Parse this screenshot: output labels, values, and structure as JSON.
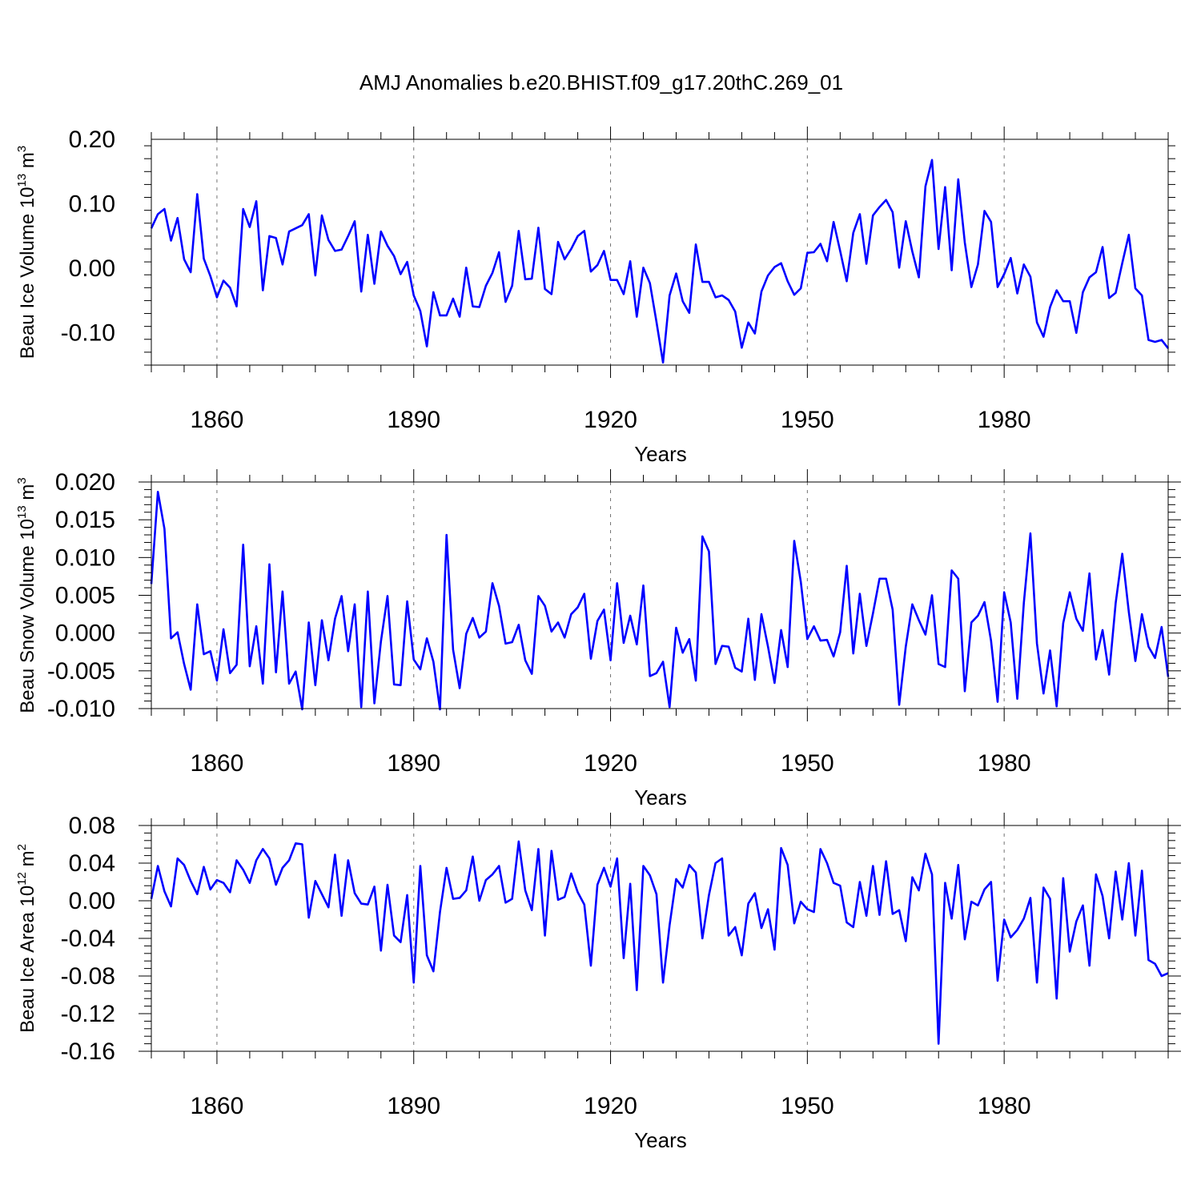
{
  "title": "AMJ Anomalies b.e20.BHIST.f09_g17.20thC.269_01",
  "line_color": "#0000ff",
  "chart_data": [
    {
      "type": "line",
      "series": [
        {
          "name": "Beau Ice Volume",
          "values": [
            0.062,
            0.084,
            0.092,
            0.043,
            0.078,
            0.014,
            -0.006,
            0.115,
            0.015,
            -0.012,
            -0.045,
            -0.019,
            -0.03,
            -0.059,
            0.092,
            0.064,
            0.104,
            -0.034,
            0.05,
            0.047,
            0.006,
            0.057,
            0.062,
            0.067,
            0.084,
            -0.011,
            0.082,
            0.044,
            0.027,
            0.029,
            0.05,
            0.073,
            -0.036,
            0.052,
            -0.024,
            0.057,
            0.035,
            0.019,
            -0.009,
            0.01,
            -0.042,
            -0.066,
            -0.121,
            -0.037,
            -0.073,
            -0.073,
            -0.047,
            -0.075,
            0.001,
            -0.059,
            -0.06,
            -0.027,
            -0.007,
            0.025,
            -0.052,
            -0.027,
            0.058,
            -0.017,
            -0.016,
            0.063,
            -0.032,
            -0.04,
            0.041,
            0.014,
            0.03,
            0.05,
            0.058,
            -0.005,
            0.005,
            0.027,
            -0.018,
            -0.018,
            -0.04,
            0.011,
            -0.075,
            0.001,
            -0.023,
            -0.083,
            -0.146,
            -0.042,
            -0.008,
            -0.051,
            -0.069,
            0.037,
            -0.021,
            -0.021,
            -0.045,
            -0.042,
            -0.049,
            -0.067,
            -0.123,
            -0.084,
            -0.101,
            -0.036,
            -0.011,
            0.002,
            0.008,
            -0.02,
            -0.041,
            -0.031,
            0.024,
            0.025,
            0.038,
            0.011,
            0.072,
            0.027,
            -0.02,
            0.055,
            0.084,
            0.007,
            0.082,
            0.095,
            0.106,
            0.087,
            0.001,
            0.073,
            0.026,
            -0.014,
            0.127,
            0.168,
            0.03,
            0.126,
            -0.003,
            0.138,
            0.04,
            -0.029,
            0.006,
            0.089,
            0.072,
            -0.029,
            -0.009,
            0.016,
            -0.039,
            0.006,
            -0.013,
            -0.084,
            -0.106,
            -0.06,
            -0.034,
            -0.051,
            -0.051,
            -0.1,
            -0.037,
            -0.014,
            -0.006,
            0.033,
            -0.046,
            -0.038,
            0.008,
            0.052,
            -0.031,
            -0.042,
            -0.111,
            -0.114,
            -0.111,
            -0.124
          ]
        }
      ],
      "x_start": 1850,
      "x_step": 1,
      "xlim": [
        1850,
        2005
      ],
      "ylim": [
        -0.15,
        0.2
      ],
      "yticks": [
        0.2,
        0.1,
        0.0,
        -0.1
      ],
      "ytick_labels": [
        "0.20",
        "0.10",
        "0.00",
        "-0.10"
      ],
      "xticks": [
        1860,
        1890,
        1920,
        1950,
        1980
      ],
      "xtick_labels": [
        "1860",
        "1890",
        "1920",
        "1950",
        "1980"
      ],
      "xlabel": "Years",
      "ylabel_main": "Beau Ice Volume 10",
      "ylabel_sup": "13",
      "ylabel_unit": " m",
      "ylabel_unit_sup": "3"
    },
    {
      "type": "line",
      "series": [
        {
          "name": "Beau Snow Volume",
          "values": [
            0.0065,
            0.0187,
            0.0138,
            -0.0007,
            0.0001,
            -0.0041,
            -0.0075,
            0.0038,
            -0.0028,
            -0.0024,
            -0.0063,
            0.0005,
            -0.0053,
            -0.0042,
            0.0117,
            -0.0044,
            0.0009,
            -0.0067,
            0.0091,
            -0.0052,
            0.0055,
            -0.0067,
            -0.0051,
            -0.0101,
            0.0014,
            -0.0069,
            0.0017,
            -0.0036,
            0.0019,
            0.0049,
            -0.0024,
            0.0038,
            -0.0098,
            0.0055,
            -0.0093,
            -0.0011,
            0.0049,
            -0.0068,
            -0.0069,
            0.0042,
            -0.0035,
            -0.0048,
            -0.0007,
            -0.0038,
            -0.0101,
            0.013,
            -0.0022,
            -0.0073,
            -0.0001,
            0.002,
            -0.0006,
            0.0002,
            0.0066,
            0.0036,
            -0.0014,
            -0.0012,
            0.0011,
            -0.0036,
            -0.0054,
            0.0049,
            0.0036,
            0.0002,
            0.0014,
            -0.0006,
            0.0025,
            0.0034,
            0.0052,
            -0.0034,
            0.0016,
            0.0031,
            -0.0036,
            0.0066,
            -0.0013,
            0.0023,
            -0.0015,
            0.0063,
            -0.0057,
            -0.0053,
            -0.0038,
            -0.0098,
            0.0007,
            -0.0026,
            -0.0008,
            -0.0063,
            0.0128,
            0.0108,
            -0.0041,
            -0.0017,
            -0.0018,
            -0.0046,
            -0.0051,
            0.0019,
            -0.0062,
            0.0025,
            -0.0018,
            -0.0066,
            0.0004,
            -0.0045,
            0.0122,
            0.0068,
            -0.0008,
            0.0009,
            -0.001,
            -0.0009,
            -0.0031,
            0.0001,
            0.0089,
            -0.0027,
            0.0052,
            -0.0017,
            0.0026,
            0.0072,
            0.0072,
            0.0031,
            -0.0095,
            -0.0018,
            0.0038,
            0.0017,
            -0.0002,
            0.005,
            -0.0041,
            -0.0045,
            0.0083,
            0.0072,
            -0.0077,
            0.0014,
            0.0023,
            0.0041,
            -0.001,
            -0.0091,
            0.0054,
            0.0014,
            -0.0087,
            0.004,
            0.0132,
            -0.0014,
            -0.008,
            -0.0023,
            -0.0097,
            0.0013,
            0.0054,
            0.0019,
            0.0003,
            0.0079,
            -0.0035,
            0.0004,
            -0.0055,
            0.004,
            0.0105,
            0.0028,
            -0.0037,
            0.0025,
            -0.0018,
            -0.0033,
            0.0008,
            -0.0058
          ]
        }
      ],
      "x_start": 1850,
      "x_step": 1,
      "xlim": [
        1850,
        2005
      ],
      "ylim": [
        -0.01,
        0.02
      ],
      "yticks": [
        0.02,
        0.015,
        0.01,
        0.005,
        0.0,
        -0.005,
        -0.01
      ],
      "ytick_labels": [
        "0.020",
        "0.015",
        "0.010",
        "0.005",
        "0.000",
        "-0.005",
        "-0.010"
      ],
      "xticks": [
        1860,
        1890,
        1920,
        1950,
        1980
      ],
      "xtick_labels": [
        "1860",
        "1890",
        "1920",
        "1950",
        "1980"
      ],
      "xlabel": "Years",
      "ylabel_main": "Beau Snow Volume 10",
      "ylabel_sup": "13",
      "ylabel_unit": " m",
      "ylabel_unit_sup": "3"
    },
    {
      "type": "line",
      "series": [
        {
          "name": "Beau Ice Area",
          "values": [
            0.002,
            0.037,
            0.01,
            -0.006,
            0.045,
            0.038,
            0.021,
            0.007,
            0.036,
            0.012,
            0.022,
            0.019,
            0.009,
            0.043,
            0.033,
            0.019,
            0.043,
            0.055,
            0.045,
            0.017,
            0.035,
            0.043,
            0.061,
            0.06,
            -0.018,
            0.021,
            0.007,
            -0.007,
            0.049,
            -0.016,
            0.043,
            0.008,
            -0.003,
            -0.004,
            0.015,
            -0.053,
            0.017,
            -0.037,
            -0.044,
            0.006,
            -0.087,
            0.037,
            -0.058,
            -0.075,
            -0.012,
            0.035,
            0.002,
            0.003,
            0.011,
            0.047,
            0.0,
            0.022,
            0.028,
            0.037,
            -0.002,
            0.002,
            0.063,
            0.011,
            -0.01,
            0.055,
            -0.037,
            0.053,
            0.001,
            0.004,
            0.029,
            0.009,
            -0.004,
            -0.069,
            0.017,
            0.035,
            0.015,
            0.045,
            -0.061,
            0.018,
            -0.095,
            0.037,
            0.027,
            0.007,
            -0.087,
            -0.026,
            0.023,
            0.014,
            0.038,
            0.03,
            -0.04,
            0.006,
            0.04,
            0.045,
            -0.037,
            -0.028,
            -0.058,
            -0.003,
            0.008,
            -0.029,
            -0.009,
            -0.052,
            0.056,
            0.038,
            -0.024,
            -0.001,
            -0.009,
            -0.012,
            0.055,
            0.04,
            0.019,
            0.016,
            -0.023,
            -0.028,
            0.02,
            -0.016,
            0.037,
            -0.015,
            0.042,
            -0.014,
            -0.01,
            -0.043,
            0.025,
            0.011,
            0.05,
            0.028,
            -0.152,
            0.019,
            -0.019,
            0.038,
            -0.041,
            -0.001,
            -0.005,
            0.012,
            0.02,
            -0.085,
            -0.02,
            -0.039,
            -0.031,
            -0.019,
            0.003,
            -0.087,
            0.014,
            0.002,
            -0.104,
            0.024,
            -0.054,
            -0.022,
            -0.005,
            -0.069,
            0.028,
            0.005,
            -0.04,
            0.031,
            -0.02,
            0.04,
            -0.037,
            0.032,
            -0.063,
            -0.067,
            -0.08,
            -0.077
          ]
        }
      ],
      "x_start": 1850,
      "x_step": 1,
      "xlim": [
        1850,
        2005
      ],
      "ylim": [
        -0.16,
        0.08
      ],
      "yticks": [
        0.08,
        0.04,
        0.0,
        -0.04,
        -0.08,
        -0.12,
        -0.16
      ],
      "ytick_labels": [
        "0.08",
        "0.04",
        "0.00",
        "-0.04",
        "-0.08",
        "-0.12",
        "-0.16"
      ],
      "xticks": [
        1860,
        1890,
        1920,
        1950,
        1980
      ],
      "xtick_labels": [
        "1860",
        "1890",
        "1920",
        "1950",
        "1980"
      ],
      "xlabel": "Years",
      "ylabel_main": "Beau Ice Area 10",
      "ylabel_sup": "12",
      "ylabel_unit": " m",
      "ylabel_unit_sup": "2"
    }
  ]
}
